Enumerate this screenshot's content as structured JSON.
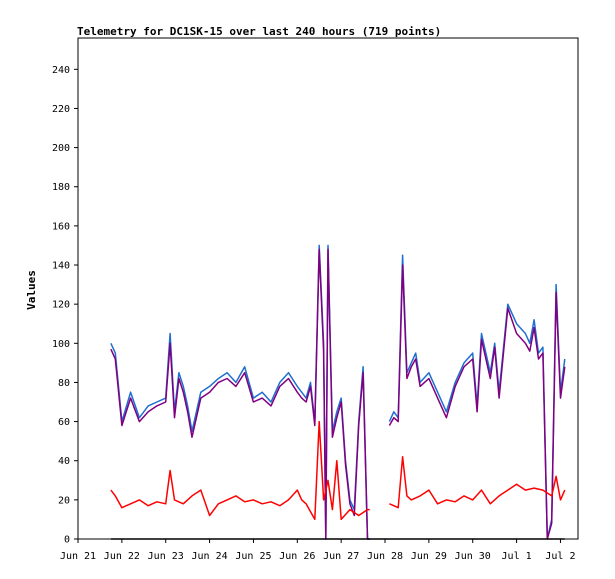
{
  "chart_data": {
    "type": "line",
    "title": "Telemetry for DC1SK-15 over last 240 hours (719 points)",
    "xlabel": "",
    "ylabel": "Values",
    "ylim": [
      0,
      256
    ],
    "y_ticks": [
      0,
      20,
      40,
      60,
      80,
      100,
      120,
      140,
      160,
      180,
      200,
      220,
      240
    ],
    "x_ticks": [
      "Jun 21",
      "Jun 22",
      "Jun 23",
      "Jun 24",
      "Jun 25",
      "Jun 26",
      "Jun 27",
      "Jun 28",
      "Jun 29",
      "Jun 30",
      "Jul 1",
      "Jul 2"
    ],
    "x_day_range": [
      0,
      11.4
    ],
    "grid": false,
    "legend": "none",
    "series": [
      {
        "color": "#1e6fd0",
        "x": [
          0.75,
          0.85,
          1.0,
          1.2,
          1.4,
          1.6,
          1.8,
          2.0,
          2.1,
          2.2,
          2.3,
          2.4,
          2.5,
          2.6,
          2.8,
          3.0,
          3.2,
          3.4,
          3.6,
          3.8,
          4.0,
          4.2,
          4.4,
          4.6,
          4.8,
          5.0,
          5.1,
          5.2,
          5.3,
          5.4,
          5.5,
          5.6,
          5.65,
          5.7,
          5.8,
          5.9,
          6.0,
          6.1,
          6.2,
          6.3,
          6.4,
          6.5,
          6.6,
          6.65
        ],
        "y": [
          100,
          95,
          60,
          75,
          62,
          68,
          70,
          72,
          105,
          65,
          85,
          78,
          68,
          55,
          75,
          78,
          82,
          85,
          80,
          88,
          72,
          75,
          70,
          80,
          85,
          78,
          75,
          72,
          80,
          60,
          150,
          100,
          0,
          150,
          55,
          65,
          72,
          40,
          20,
          15,
          60,
          88,
          0,
          0
        ]
      },
      {
        "color": "#1e6fd0",
        "x": [
          7.1,
          7.2,
          7.3,
          7.4,
          7.5,
          7.6,
          7.7,
          7.8,
          8.0,
          8.2,
          8.4,
          8.6,
          8.8,
          9.0,
          9.1,
          9.2,
          9.4,
          9.5,
          9.6,
          9.8,
          10.0,
          10.2,
          10.3,
          10.4,
          10.5,
          10.6,
          10.7,
          10.8,
          10.9,
          11.0,
          11.1
        ],
        "y": [
          60,
          65,
          62,
          145,
          85,
          90,
          95,
          80,
          85,
          75,
          65,
          80,
          90,
          95,
          68,
          105,
          85,
          100,
          75,
          120,
          110,
          105,
          100,
          112,
          95,
          98,
          0,
          10,
          130,
          75,
          92
        ]
      },
      {
        "color": "#800080",
        "x": [
          0.75,
          0.85,
          1.0,
          1.2,
          1.4,
          1.6,
          1.8,
          2.0,
          2.1,
          2.2,
          2.3,
          2.4,
          2.5,
          2.6,
          2.8,
          3.0,
          3.2,
          3.4,
          3.6,
          3.8,
          4.0,
          4.2,
          4.4,
          4.6,
          4.8,
          5.0,
          5.1,
          5.2,
          5.3,
          5.4,
          5.5,
          5.6,
          5.65,
          5.7,
          5.8,
          5.9,
          6.0,
          6.1,
          6.2,
          6.3,
          6.4,
          6.5,
          6.6,
          6.65
        ],
        "y": [
          97,
          92,
          58,
          72,
          60,
          65,
          68,
          70,
          100,
          62,
          82,
          75,
          65,
          52,
          72,
          75,
          80,
          82,
          78,
          85,
          70,
          72,
          68,
          78,
          82,
          75,
          72,
          70,
          78,
          58,
          148,
          96,
          0,
          148,
          52,
          62,
          70,
          38,
          18,
          12,
          58,
          85,
          0,
          0
        ]
      },
      {
        "color": "#800080",
        "x": [
          7.1,
          7.2,
          7.3,
          7.4,
          7.5,
          7.6,
          7.7,
          7.8,
          8.0,
          8.2,
          8.4,
          8.6,
          8.8,
          9.0,
          9.1,
          9.2,
          9.4,
          9.5,
          9.6,
          9.8,
          10.0,
          10.2,
          10.3,
          10.4,
          10.5,
          10.6,
          10.7,
          10.8,
          10.9,
          11.0,
          11.1
        ],
        "y": [
          58,
          62,
          60,
          140,
          82,
          88,
          92,
          78,
          82,
          72,
          62,
          78,
          88,
          92,
          65,
          102,
          82,
          98,
          72,
          118,
          105,
          100,
          96,
          108,
          92,
          95,
          0,
          8,
          126,
          72,
          88
        ]
      },
      {
        "color": "#ff0000",
        "x": [
          0.75,
          0.85,
          1.0,
          1.2,
          1.4,
          1.6,
          1.8,
          2.0,
          2.1,
          2.2,
          2.4,
          2.6,
          2.8,
          3.0,
          3.2,
          3.4,
          3.6,
          3.8,
          4.0,
          4.2,
          4.4,
          4.6,
          4.8,
          5.0,
          5.1,
          5.2,
          5.4,
          5.5,
          5.6,
          5.7,
          5.8,
          5.9,
          6.0,
          6.2,
          6.4,
          6.6,
          6.65
        ],
        "y": [
          25,
          22,
          16,
          18,
          20,
          17,
          19,
          18,
          35,
          20,
          18,
          22,
          25,
          12,
          18,
          20,
          22,
          19,
          20,
          18,
          19,
          17,
          20,
          25,
          20,
          18,
          10,
          60,
          20,
          30,
          15,
          40,
          10,
          15,
          12,
          15,
          15
        ]
      },
      {
        "color": "#ff0000",
        "x": [
          7.1,
          7.2,
          7.3,
          7.4,
          7.5,
          7.6,
          7.8,
          8.0,
          8.2,
          8.4,
          8.6,
          8.8,
          9.0,
          9.2,
          9.4,
          9.6,
          9.8,
          10.0,
          10.2,
          10.4,
          10.6,
          10.8,
          10.9,
          11.0,
          11.1
        ],
        "y": [
          18,
          17,
          16,
          42,
          22,
          20,
          22,
          25,
          18,
          20,
          19,
          22,
          20,
          25,
          18,
          22,
          25,
          28,
          25,
          26,
          25,
          22,
          32,
          20,
          25
        ]
      },
      {
        "color": "#000000",
        "x": [
          0.75,
          11.1
        ],
        "y": [
          0,
          0
        ]
      }
    ]
  }
}
